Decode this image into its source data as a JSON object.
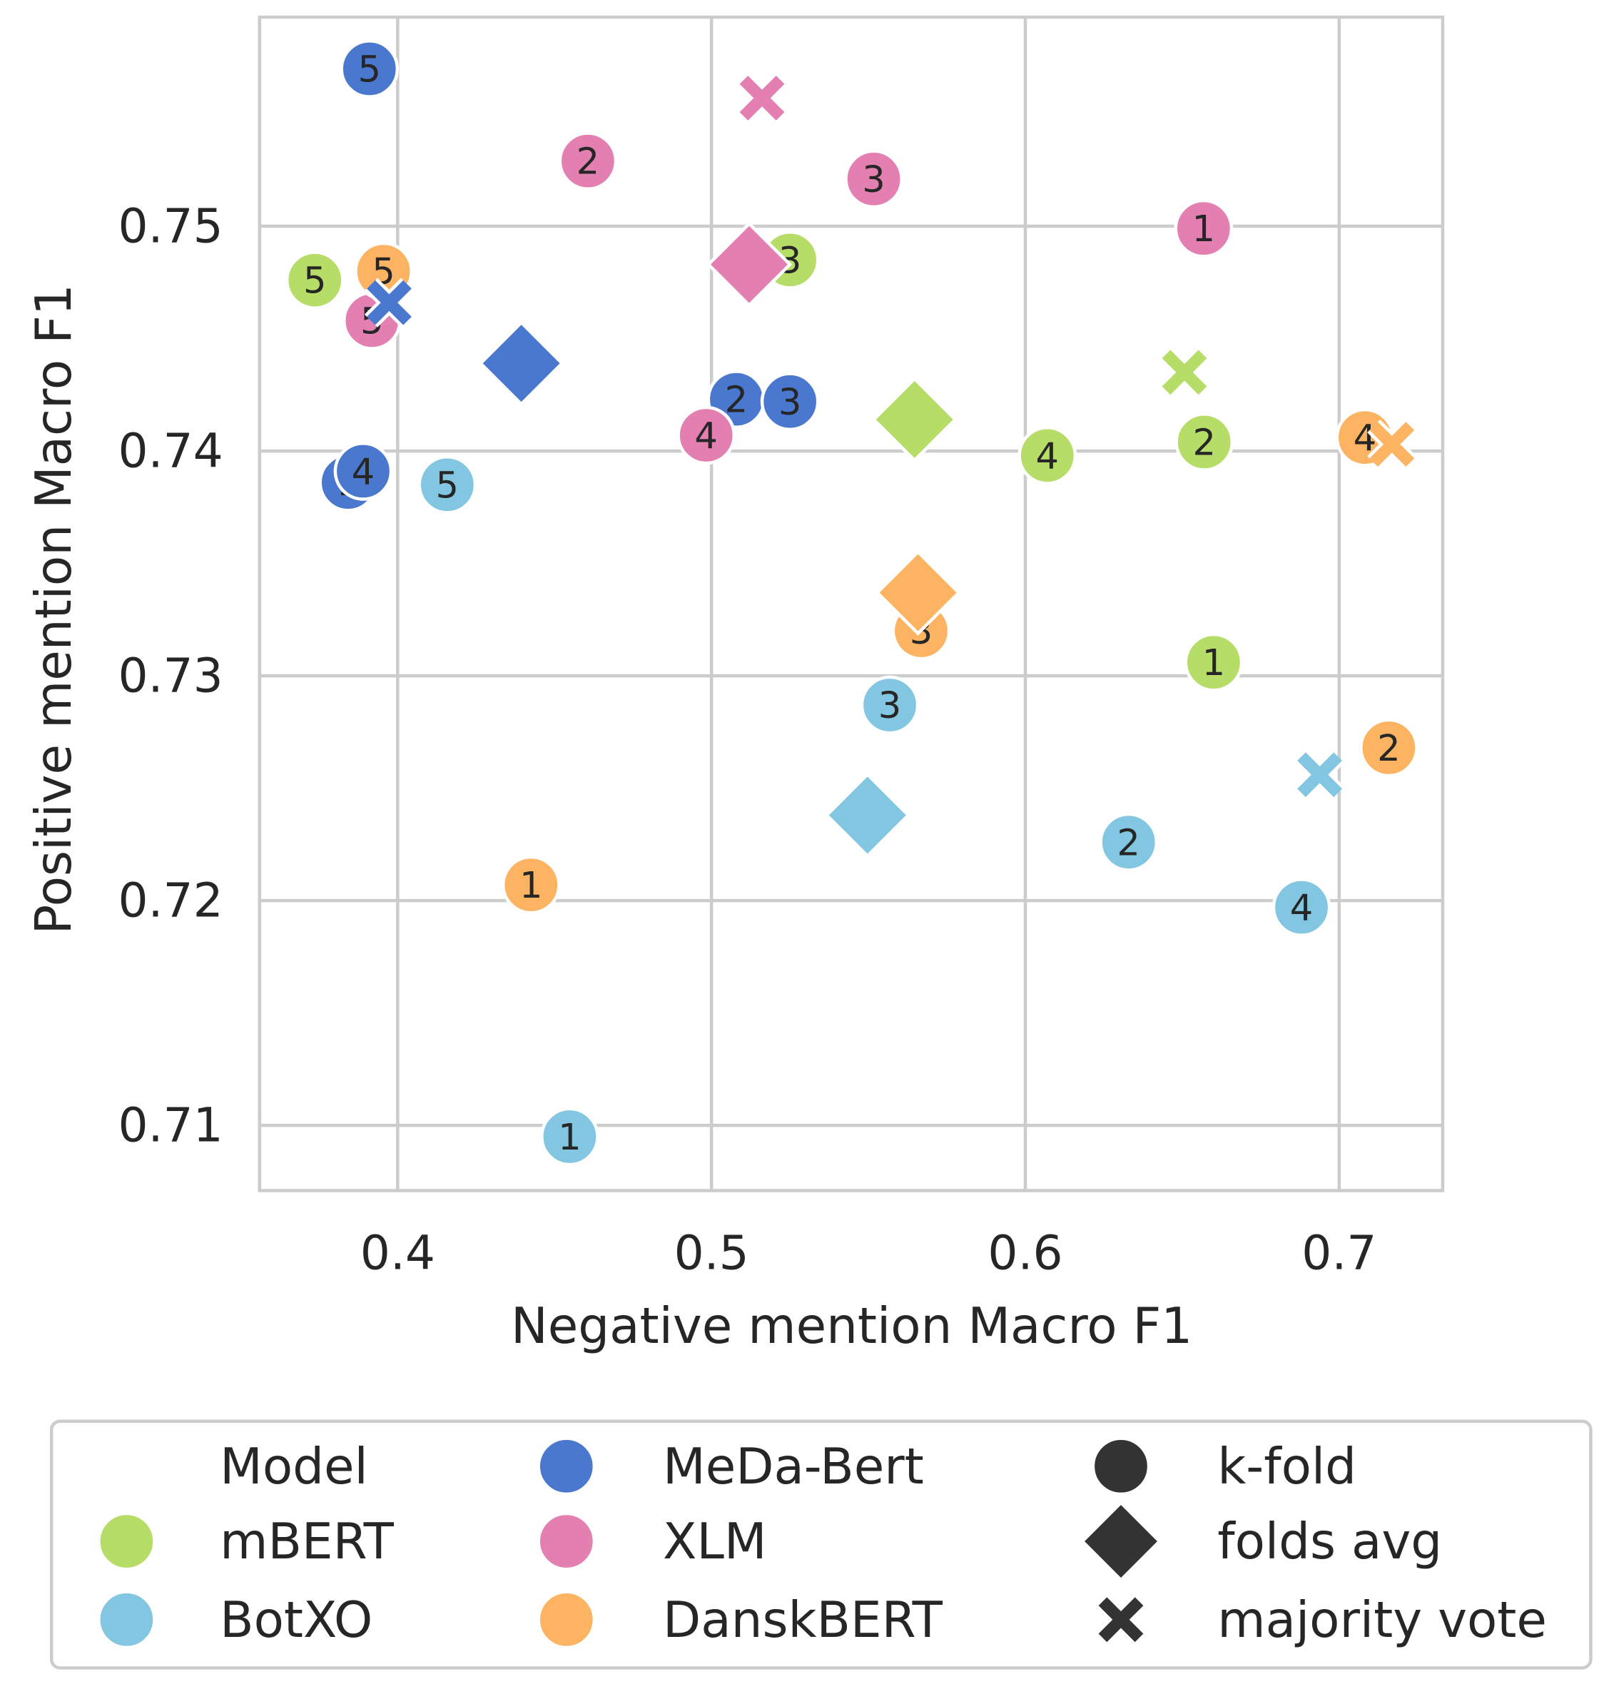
{
  "chart_data": {
    "type": "scatter",
    "title": "",
    "xlabel": "Negative mention Macro F1",
    "ylabel": "Positive mention Macro F1",
    "xlim": [
      0.356,
      0.733
    ],
    "ylim": [
      0.7071,
      0.7593
    ],
    "xticks": [
      0.4,
      0.5,
      0.6,
      0.7
    ],
    "xtick_labels": [
      "0.4",
      "0.5",
      "0.6",
      "0.7"
    ],
    "yticks": [
      0.71,
      0.72,
      0.73,
      0.74,
      0.75
    ],
    "ytick_labels": [
      "0.71",
      "0.72",
      "0.73",
      "0.74",
      "0.75"
    ],
    "grid": true,
    "legend": {
      "placement": "bottom",
      "model_title": "Model",
      "models": [
        "mBERT",
        "BotXO",
        "MeDa-Bert",
        "XLM",
        "DanskBERT"
      ],
      "markers": [
        {
          "shape": "circle",
          "label": "k-fold"
        },
        {
          "shape": "diamond",
          "label": "folds avg"
        },
        {
          "shape": "x",
          "label": "majority vote"
        }
      ]
    },
    "series": [
      {
        "name": "mBERT",
        "color": "#b6dd68",
        "kfold": [
          {
            "fold": "5",
            "x": 0.3736,
            "y": 0.7476
          },
          {
            "fold": "3",
            "x": 0.525,
            "y": 0.7485
          },
          {
            "fold": "4",
            "x": 0.607,
            "y": 0.7398
          },
          {
            "fold": "2",
            "x": 0.657,
            "y": 0.7404
          },
          {
            "fold": "1",
            "x": 0.66,
            "y": 0.7306
          }
        ],
        "folds_avg": {
          "x": 0.5647,
          "y": 0.7414
        },
        "majority_vote": {
          "x": 0.6507,
          "y": 0.7435
        }
      },
      {
        "name": "BotXO",
        "color": "#82c6e2",
        "kfold": [
          {
            "fold": "5",
            "x": 0.4158,
            "y": 0.7385
          },
          {
            "fold": "1",
            "x": 0.4548,
            "y": 0.7095
          },
          {
            "fold": "3",
            "x": 0.5568,
            "y": 0.7287
          },
          {
            "fold": "2",
            "x": 0.6329,
            "y": 0.7226
          },
          {
            "fold": "4",
            "x": 0.688,
            "y": 0.7197
          }
        ],
        "folds_avg": {
          "x": 0.5497,
          "y": 0.7238
        },
        "majority_vote": {
          "x": 0.6938,
          "y": 0.7256
        }
      },
      {
        "name": "MeDa-Bert",
        "color": "#4a78cf",
        "kfold": [
          {
            "fold": "5",
            "x": 0.391,
            "y": 0.757
          },
          {
            "fold": "1",
            "x": 0.3842,
            "y": 0.7386
          },
          {
            "fold": "4",
            "x": 0.389,
            "y": 0.7391
          },
          {
            "fold": "2",
            "x": 0.5079,
            "y": 0.7423
          },
          {
            "fold": "3",
            "x": 0.525,
            "y": 0.7422
          }
        ],
        "folds_avg": {
          "x": 0.4394,
          "y": 0.7439
        },
        "majority_vote": {
          "x": 0.3973,
          "y": 0.7466
        }
      },
      {
        "name": "XLM",
        "color": "#e47fb1",
        "kfold": [
          {
            "fold": "2",
            "x": 0.4606,
            "y": 0.7529
          },
          {
            "fold": "3",
            "x": 0.5517,
            "y": 0.7521
          },
          {
            "fold": "1",
            "x": 0.6568,
            "y": 0.7499
          },
          {
            "fold": "5",
            "x": 0.3918,
            "y": 0.7458
          },
          {
            "fold": "4",
            "x": 0.4983,
            "y": 0.7407
          }
        ],
        "folds_avg": {
          "x": 0.512,
          "y": 0.7483
        },
        "majority_vote": {
          "x": 0.5161,
          "y": 0.7557
        }
      },
      {
        "name": "DanskBERT",
        "color": "#fdb462",
        "kfold": [
          {
            "fold": "5",
            "x": 0.3955,
            "y": 0.748
          },
          {
            "fold": "1",
            "x": 0.4425,
            "y": 0.7207
          },
          {
            "fold": "3",
            "x": 0.5668,
            "y": 0.732
          },
          {
            "fold": "2",
            "x": 0.7158,
            "y": 0.7268
          },
          {
            "fold": "4",
            "x": 0.7082,
            "y": 0.7406
          }
        ],
        "folds_avg": {
          "x": 0.5658,
          "y": 0.7337
        },
        "majority_vote": {
          "x": 0.7168,
          "y": 0.7403
        }
      }
    ]
  }
}
